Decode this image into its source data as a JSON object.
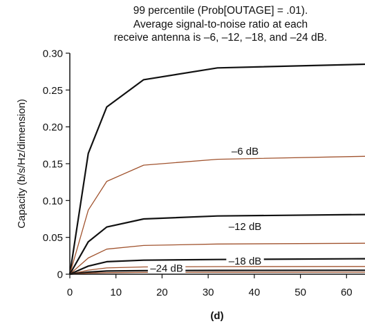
{
  "chart_data": {
    "type": "line",
    "title_lines": [
      "99 percentile (Prob[OUTAGE] = .01).",
      "Average signal-to-noise ratio at each",
      "receive antenna is –6, –12, –18, and –24 dB."
    ],
    "xlabel": "(d)",
    "ylabel": "Capacity (b/s/Hz/dimension)",
    "xlim": [
      0,
      64
    ],
    "ylim": [
      0,
      0.3
    ],
    "xticks": [
      "0",
      "10",
      "20",
      "30",
      "40",
      "50",
      "60"
    ],
    "xtick_values": [
      0,
      10,
      20,
      30,
      40,
      50,
      60
    ],
    "yticks": [
      "0",
      "0.05",
      "0.10",
      "0.15",
      "0.20",
      "0.25",
      "0.30"
    ],
    "ytick_values": [
      0,
      0.05,
      0.1,
      0.15,
      0.2,
      0.25,
      0.3
    ],
    "grid": false,
    "colors": {
      "black": "#111111",
      "brown": "#a0522d"
    },
    "x": [
      0,
      4,
      8,
      16,
      32,
      64
    ],
    "series": [
      {
        "color": "black",
        "values": [
          0,
          0.164,
          0.227,
          0.264,
          0.28,
          0.285
        ]
      },
      {
        "color": "brown",
        "values": [
          0,
          0.087,
          0.126,
          0.148,
          0.156,
          0.16
        ]
      },
      {
        "color": "black",
        "values": [
          0,
          0.044,
          0.064,
          0.075,
          0.079,
          0.081
        ]
      },
      {
        "color": "brown",
        "values": [
          0,
          0.022,
          0.034,
          0.039,
          0.041,
          0.042
        ]
      },
      {
        "color": "black",
        "values": [
          0,
          0.011,
          0.017,
          0.019,
          0.02,
          0.021
        ]
      },
      {
        "color": "brown",
        "values": [
          0,
          0.0055,
          0.0085,
          0.0098,
          0.0103,
          0.0105
        ]
      },
      {
        "color": "black",
        "values": [
          0,
          0.0028,
          0.0043,
          0.0049,
          0.0052,
          0.0053
        ]
      },
      {
        "color": "brown",
        "values": [
          0,
          0.0014,
          0.0021,
          0.0025,
          0.0026,
          0.0027
        ]
      }
    ],
    "annotations": [
      {
        "text": "–6 dB",
        "x": 38,
        "y": 0.165
      },
      {
        "text": "–12 dB",
        "x": 38,
        "y": 0.063
      },
      {
        "text": "–18 dB",
        "x": 38,
        "y": 0.016
      },
      {
        "text": "–24 dB",
        "x": 21,
        "y": 0.006
      }
    ]
  }
}
